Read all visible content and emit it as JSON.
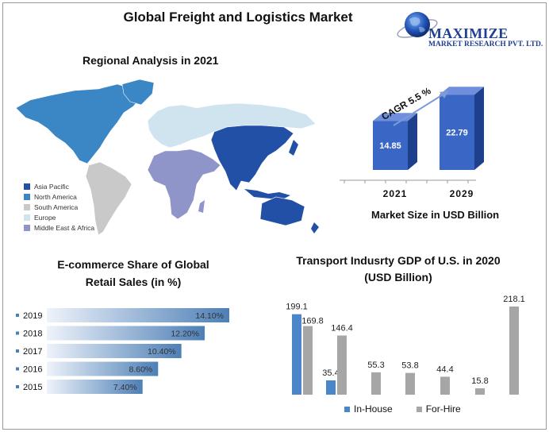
{
  "header": {
    "title": "Global Freight and Logistics Market"
  },
  "logo": {
    "name": "MAXIMIZE",
    "subtitle": "MARKET RESEARCH PVT. LTD."
  },
  "colors": {
    "asia_pacific": "#2150a6",
    "north_america": "#3b86c4",
    "south_america": "#c9c9c9",
    "europe": "#cfe4ef",
    "middle_east_africa": "#8f95c8",
    "bar3d_front": "#3a67c6",
    "bar3d_side": "#1e3f8c",
    "bar3d_top": "#6f8fdc",
    "inhouse": "#4a86c8",
    "forhire": "#a6a6a6"
  },
  "chart_data": [
    {
      "type": "map",
      "title": "Regional Analysis in 2021",
      "legend": [
        "Asia Pacific",
        "North America",
        "South America",
        "Europe",
        "Middle East & Africa"
      ],
      "legend_placement": "bottom-left"
    },
    {
      "type": "bar",
      "title": "",
      "categories": [
        "2021",
        "2029"
      ],
      "values": [
        14.85,
        22.79
      ],
      "value_labels": [
        "14.85",
        "22.79"
      ],
      "annotation": "CAGR 5.5 %",
      "xlabel": "Market Size in USD Billion",
      "ylim": [
        0,
        25
      ]
    },
    {
      "type": "bar",
      "orientation": "horizontal",
      "title": "E-commerce Share of Global Retail Sales (in %)",
      "title_lines": [
        "E-commerce Share of Global",
        "Retail Sales (in %)"
      ],
      "categories": [
        "2019",
        "2018",
        "2017",
        "2016",
        "2015"
      ],
      "values": [
        14.1,
        12.2,
        10.4,
        8.6,
        7.4
      ],
      "value_labels": [
        "14.10%",
        "12.20%",
        "10.40%",
        "8.60%",
        "7.40%"
      ],
      "xlim": [
        0,
        14.1
      ]
    },
    {
      "type": "bar",
      "title": "Transport Indusrty GDP of U.S. in 2020 (USD Billion)",
      "title_lines": [
        "Transport Indusrty GDP of U.S. in 2020",
        "(USD Billion)"
      ],
      "series": [
        {
          "name": "In-House",
          "values": [
            199.1,
            35.4,
            null,
            null,
            null,
            null,
            null
          ]
        },
        {
          "name": "For-Hire",
          "values": [
            169.8,
            146.4,
            55.3,
            53.8,
            44.4,
            15.8,
            218.1
          ]
        }
      ],
      "value_labels": [
        [
          "199.1",
          "35.4",
          "",
          "",
          "",
          "",
          ""
        ],
        [
          "169.8",
          "146.4",
          "55.3",
          "53.8",
          "44.4",
          "15.8",
          "218.1"
        ]
      ],
      "legend_placement": "bottom",
      "ylim": [
        0,
        218.1
      ]
    }
  ]
}
